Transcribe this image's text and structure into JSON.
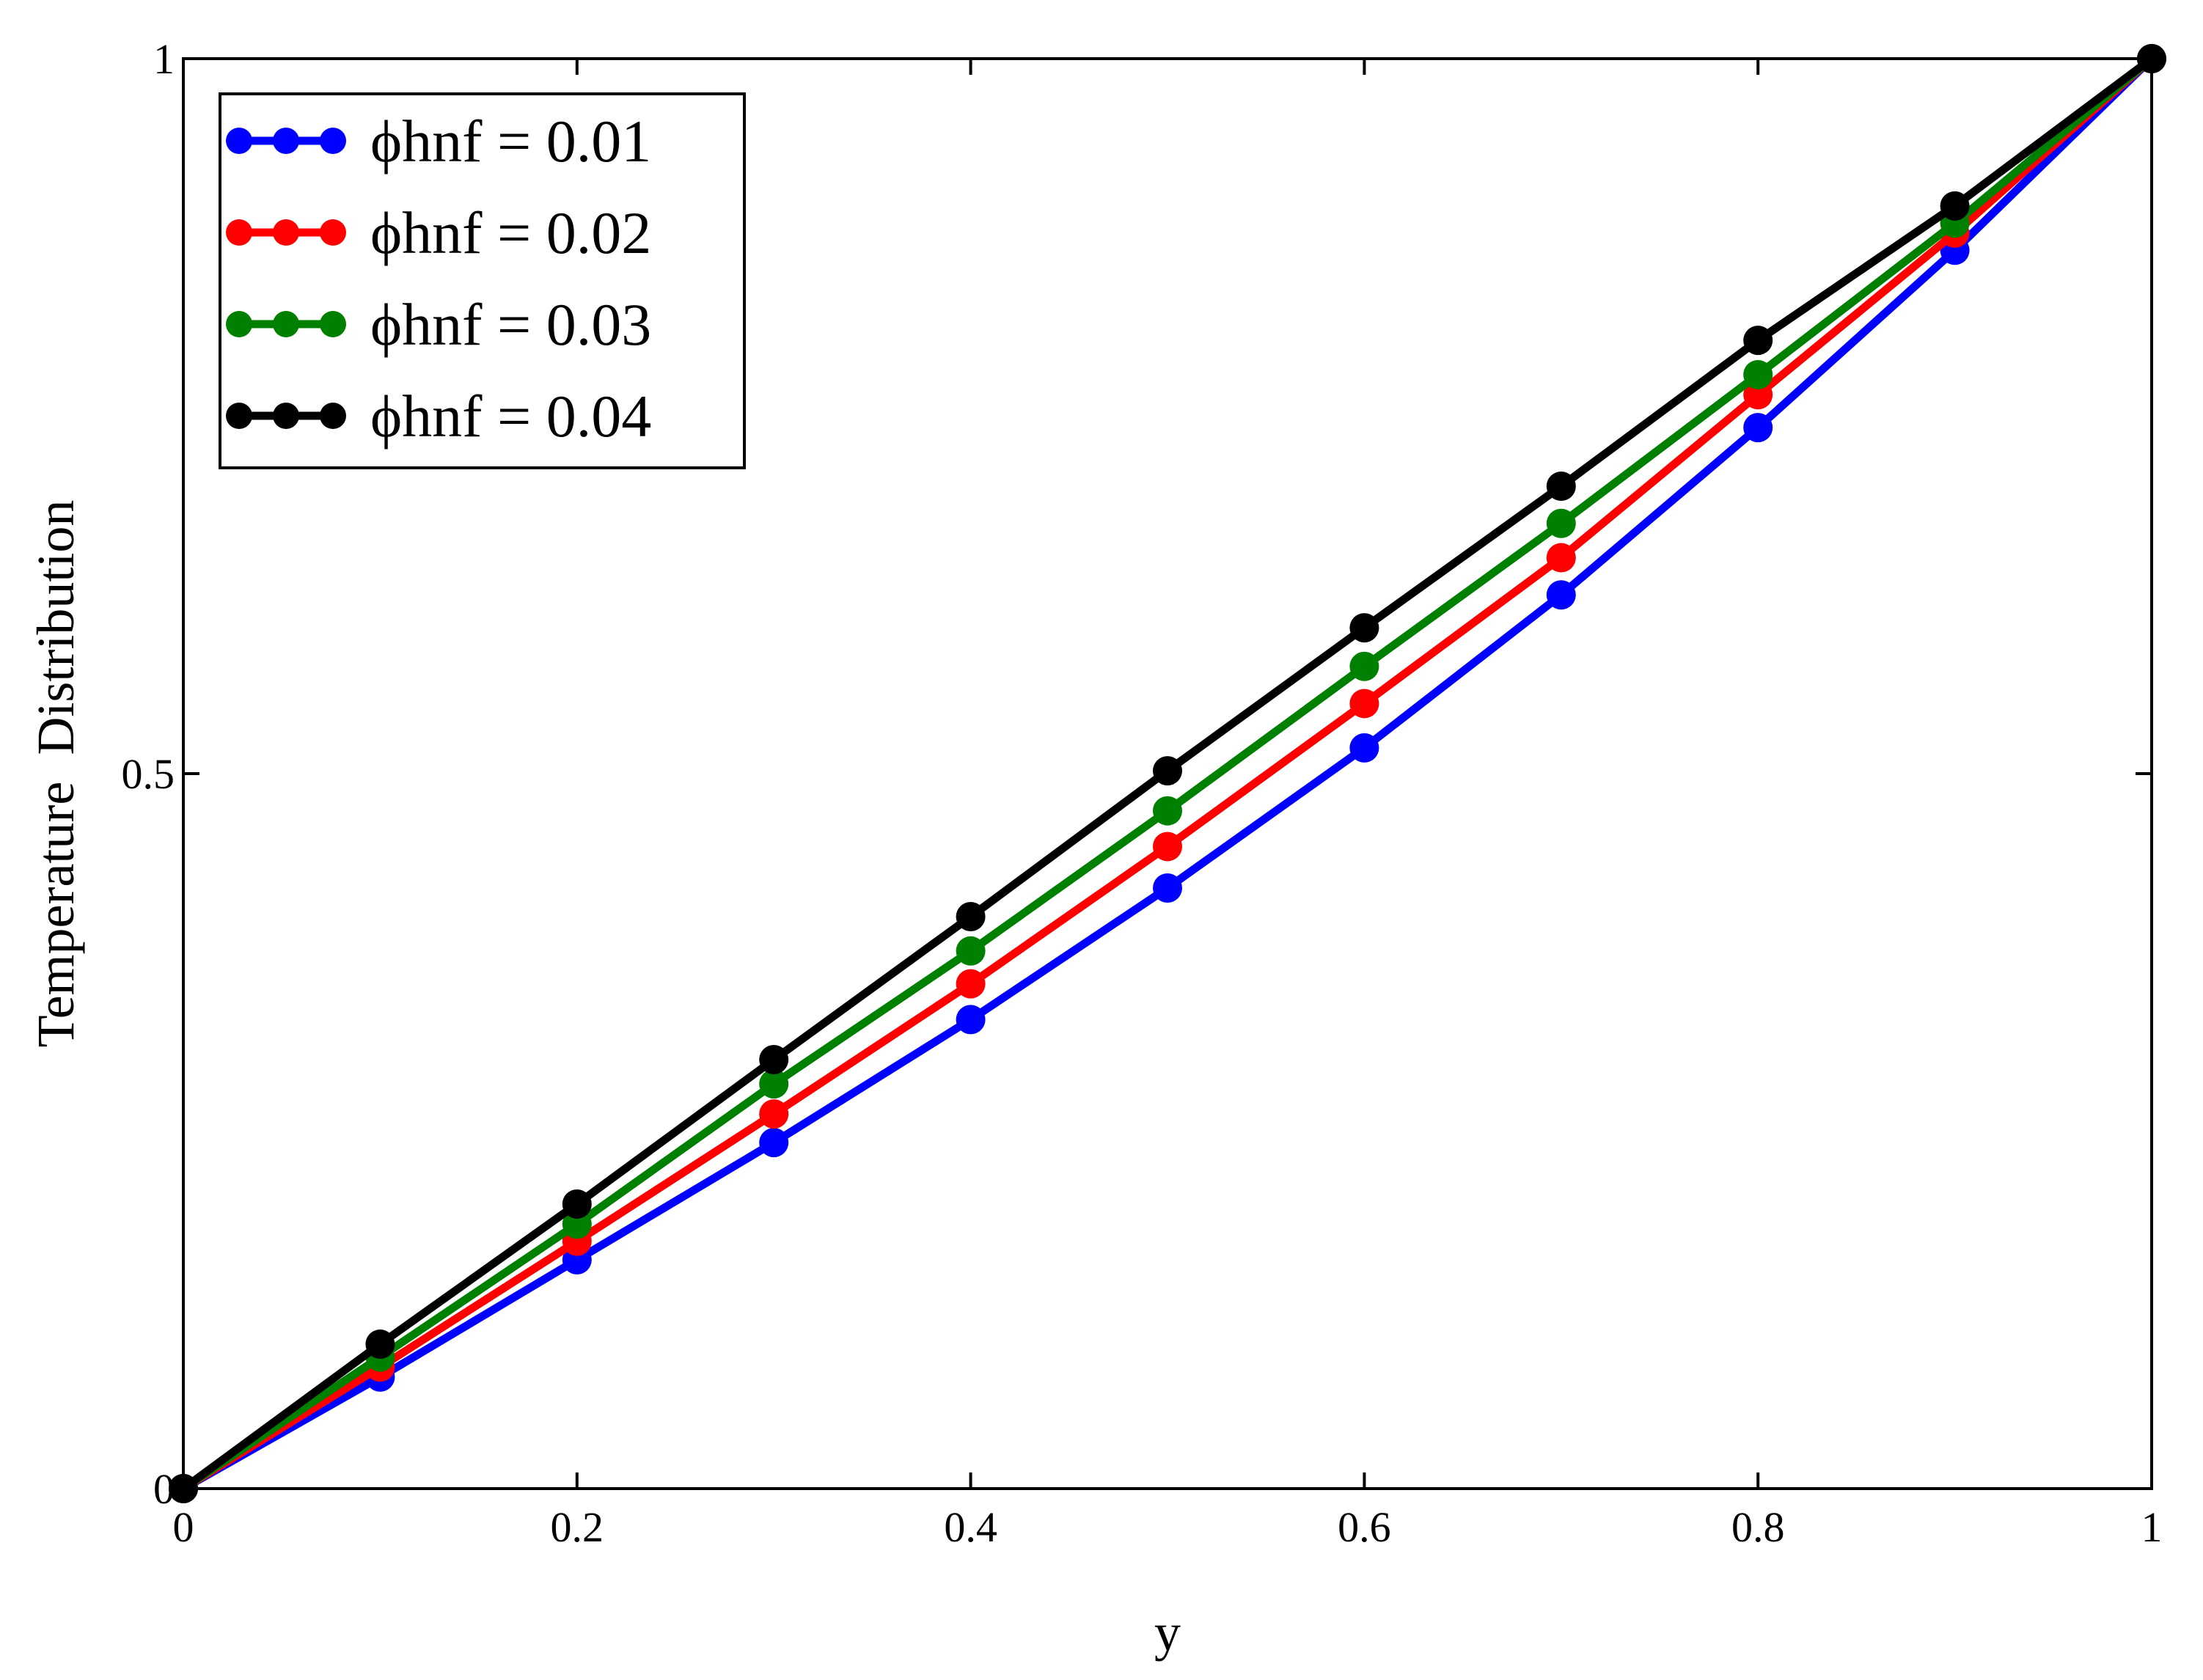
{
  "chart_data": {
    "type": "line",
    "title": "",
    "xlabel": "y",
    "ylabel": "Temperature  Distribution",
    "xlim": [
      0,
      1
    ],
    "ylim": [
      0,
      1
    ],
    "xticks": [
      0,
      0.2,
      0.4,
      0.6,
      0.8,
      1
    ],
    "xtick_labels": [
      "0",
      "0.2",
      "0.4",
      "0.6",
      "0.8",
      "1"
    ],
    "yticks": [
      0,
      0.5,
      1
    ],
    "ytick_labels": [
      "0",
      "0.5",
      "1"
    ],
    "grid": false,
    "legend_position": "top-left",
    "x": [
      0,
      0.1,
      0.2,
      0.3,
      0.4,
      0.5,
      0.6,
      0.7,
      0.8,
      0.9,
      1.0
    ],
    "series": [
      {
        "name": "ϕhnf = 0.01",
        "color": "#0000ff",
        "values": [
          0,
          0.078,
          0.16,
          0.242,
          0.328,
          0.42,
          0.518,
          0.625,
          0.742,
          0.866,
          1.0
        ]
      },
      {
        "name": "ϕhnf = 0.02",
        "color": "#ff0000",
        "values": [
          0,
          0.085,
          0.173,
          0.262,
          0.353,
          0.449,
          0.549,
          0.651,
          0.765,
          0.878,
          1.0
        ]
      },
      {
        "name": "ϕhnf = 0.03",
        "color": "#008000",
        "values": [
          0,
          0.092,
          0.185,
          0.283,
          0.376,
          0.474,
          0.575,
          0.675,
          0.779,
          0.885,
          1.0
        ]
      },
      {
        "name": "ϕhnf = 0.04",
        "color": "#000000",
        "values": [
          0,
          0.101,
          0.199,
          0.3,
          0.4,
          0.502,
          0.602,
          0.701,
          0.803,
          0.897,
          1.0
        ]
      }
    ]
  }
}
